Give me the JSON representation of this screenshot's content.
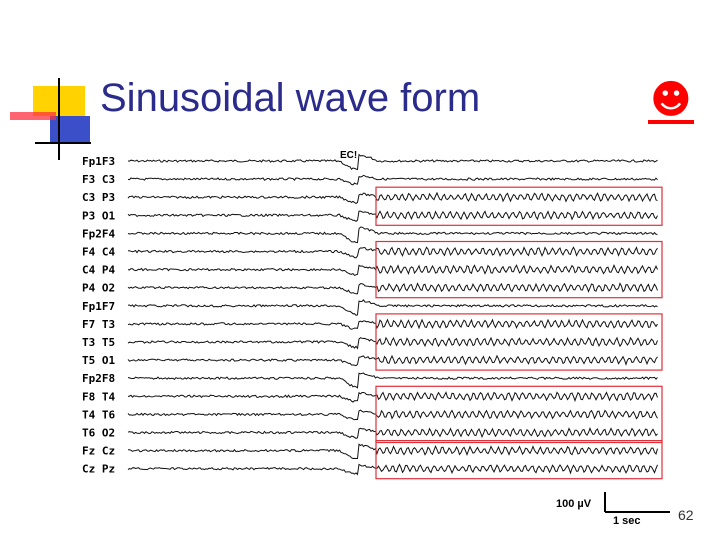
{
  "slide": {
    "title": "Sinusoidal wave form",
    "smiley": "☻",
    "page_number": "62"
  },
  "eeg": {
    "channels": [
      "Fp1F3",
      "F3 C3",
      "C3 P3",
      "P3 O1",
      "Fp2F4",
      "F4 C4",
      "C4 P4",
      "P4 O2",
      "Fp1F7",
      "F7 T3",
      "T3 T5",
      "T5 O1",
      "Fp2F8",
      "F8 T4",
      "T4 T6",
      "T6 O2",
      "Fz Cz",
      "Cz Pz"
    ],
    "annotation": "EC!",
    "scale_amplitude": "100 µV",
    "scale_time": "1 sec"
  },
  "colors": {
    "title": "#2b2b8c",
    "smiley": "#ff0000",
    "highlight_box": "#e0303a",
    "deco_yellow": "#ffd200",
    "deco_blue": "#3b50c8",
    "deco_red": "#ff3040"
  }
}
